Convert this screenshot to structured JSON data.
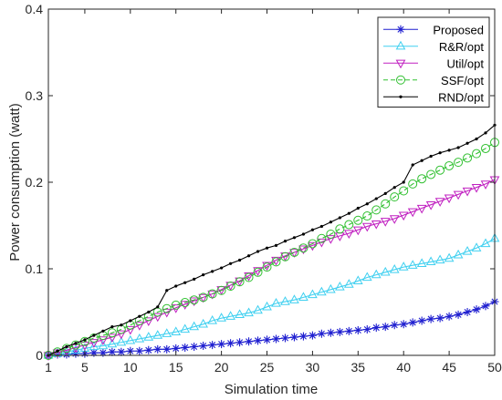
{
  "chart_data": {
    "type": "line",
    "title": "",
    "xlabel": "Simulation time",
    "ylabel": "Power consumption (watt)",
    "xlim": [
      1,
      50
    ],
    "ylim": [
      0,
      0.4
    ],
    "x_ticks": [
      1,
      5,
      10,
      15,
      20,
      25,
      30,
      35,
      40,
      45,
      50
    ],
    "y_ticks": [
      0,
      0.1,
      0.2,
      0.3,
      0.4
    ],
    "y_tick_labels": [
      "0",
      "0.1",
      "0.2",
      "0.3",
      "0.4"
    ],
    "grid": false,
    "legend_position": "top-right",
    "x": [
      1,
      2,
      3,
      4,
      5,
      6,
      7,
      8,
      9,
      10,
      11,
      12,
      13,
      14,
      15,
      16,
      17,
      18,
      19,
      20,
      21,
      22,
      23,
      24,
      25,
      26,
      27,
      28,
      29,
      30,
      31,
      32,
      33,
      34,
      35,
      36,
      37,
      38,
      39,
      40,
      41,
      42,
      43,
      44,
      45,
      46,
      47,
      48,
      49,
      50
    ],
    "series": [
      {
        "name": "Proposed",
        "color": "#1f1fd0",
        "marker": "asterisk",
        "dash": "",
        "values": [
          0.0,
          0.001,
          0.001,
          0.002,
          0.002,
          0.003,
          0.003,
          0.004,
          0.004,
          0.005,
          0.005,
          0.006,
          0.007,
          0.007,
          0.008,
          0.009,
          0.01,
          0.011,
          0.012,
          0.013,
          0.014,
          0.015,
          0.016,
          0.017,
          0.018,
          0.019,
          0.02,
          0.021,
          0.022,
          0.023,
          0.025,
          0.026,
          0.027,
          0.028,
          0.029,
          0.03,
          0.032,
          0.033,
          0.035,
          0.036,
          0.038,
          0.04,
          0.042,
          0.043,
          0.045,
          0.047,
          0.05,
          0.053,
          0.057,
          0.062
        ]
      },
      {
        "name": "R&R/opt",
        "color": "#40d0f0",
        "marker": "triangle-up",
        "dash": "",
        "values": [
          0.0,
          0.002,
          0.004,
          0.006,
          0.008,
          0.01,
          0.011,
          0.013,
          0.015,
          0.017,
          0.019,
          0.021,
          0.023,
          0.025,
          0.027,
          0.03,
          0.033,
          0.036,
          0.04,
          0.043,
          0.045,
          0.047,
          0.049,
          0.052,
          0.056,
          0.06,
          0.062,
          0.064,
          0.067,
          0.07,
          0.073,
          0.076,
          0.079,
          0.082,
          0.086,
          0.09,
          0.093,
          0.096,
          0.099,
          0.102,
          0.104,
          0.106,
          0.108,
          0.11,
          0.112,
          0.116,
          0.12,
          0.124,
          0.129,
          0.135
        ]
      },
      {
        "name": "Util/opt",
        "color": "#c020c0",
        "marker": "triangle-down",
        "dash": "",
        "values": [
          0.0,
          0.003,
          0.006,
          0.009,
          0.012,
          0.015,
          0.018,
          0.021,
          0.025,
          0.03,
          0.035,
          0.04,
          0.045,
          0.05,
          0.055,
          0.059,
          0.063,
          0.067,
          0.071,
          0.076,
          0.081,
          0.086,
          0.092,
          0.098,
          0.104,
          0.11,
          0.115,
          0.119,
          0.123,
          0.127,
          0.131,
          0.135,
          0.138,
          0.141,
          0.145,
          0.149,
          0.152,
          0.155,
          0.158,
          0.162,
          0.166,
          0.17,
          0.174,
          0.178,
          0.182,
          0.186,
          0.19,
          0.194,
          0.198,
          0.203
        ]
      },
      {
        "name": "SSF/opt",
        "color": "#30c030",
        "marker": "circle",
        "dash": "5,3",
        "values": [
          0.0,
          0.004,
          0.008,
          0.012,
          0.016,
          0.02,
          0.023,
          0.026,
          0.03,
          0.035,
          0.04,
          0.045,
          0.05,
          0.054,
          0.058,
          0.061,
          0.064,
          0.067,
          0.071,
          0.075,
          0.08,
          0.085,
          0.09,
          0.096,
          0.102,
          0.108,
          0.114,
          0.119,
          0.124,
          0.129,
          0.135,
          0.14,
          0.146,
          0.151,
          0.156,
          0.161,
          0.168,
          0.175,
          0.183,
          0.19,
          0.198,
          0.204,
          0.209,
          0.214,
          0.219,
          0.223,
          0.228,
          0.233,
          0.239,
          0.246
        ]
      },
      {
        "name": "RND/opt",
        "color": "#000000",
        "marker": "dot",
        "dash": "",
        "values": [
          0.0,
          0.005,
          0.01,
          0.014,
          0.018,
          0.023,
          0.028,
          0.033,
          0.035,
          0.04,
          0.045,
          0.05,
          0.056,
          0.075,
          0.08,
          0.084,
          0.088,
          0.093,
          0.097,
          0.101,
          0.106,
          0.11,
          0.115,
          0.12,
          0.124,
          0.127,
          0.132,
          0.136,
          0.14,
          0.145,
          0.149,
          0.154,
          0.159,
          0.164,
          0.17,
          0.175,
          0.181,
          0.187,
          0.194,
          0.2,
          0.22,
          0.225,
          0.23,
          0.234,
          0.237,
          0.24,
          0.245,
          0.25,
          0.257,
          0.266
        ]
      }
    ]
  }
}
